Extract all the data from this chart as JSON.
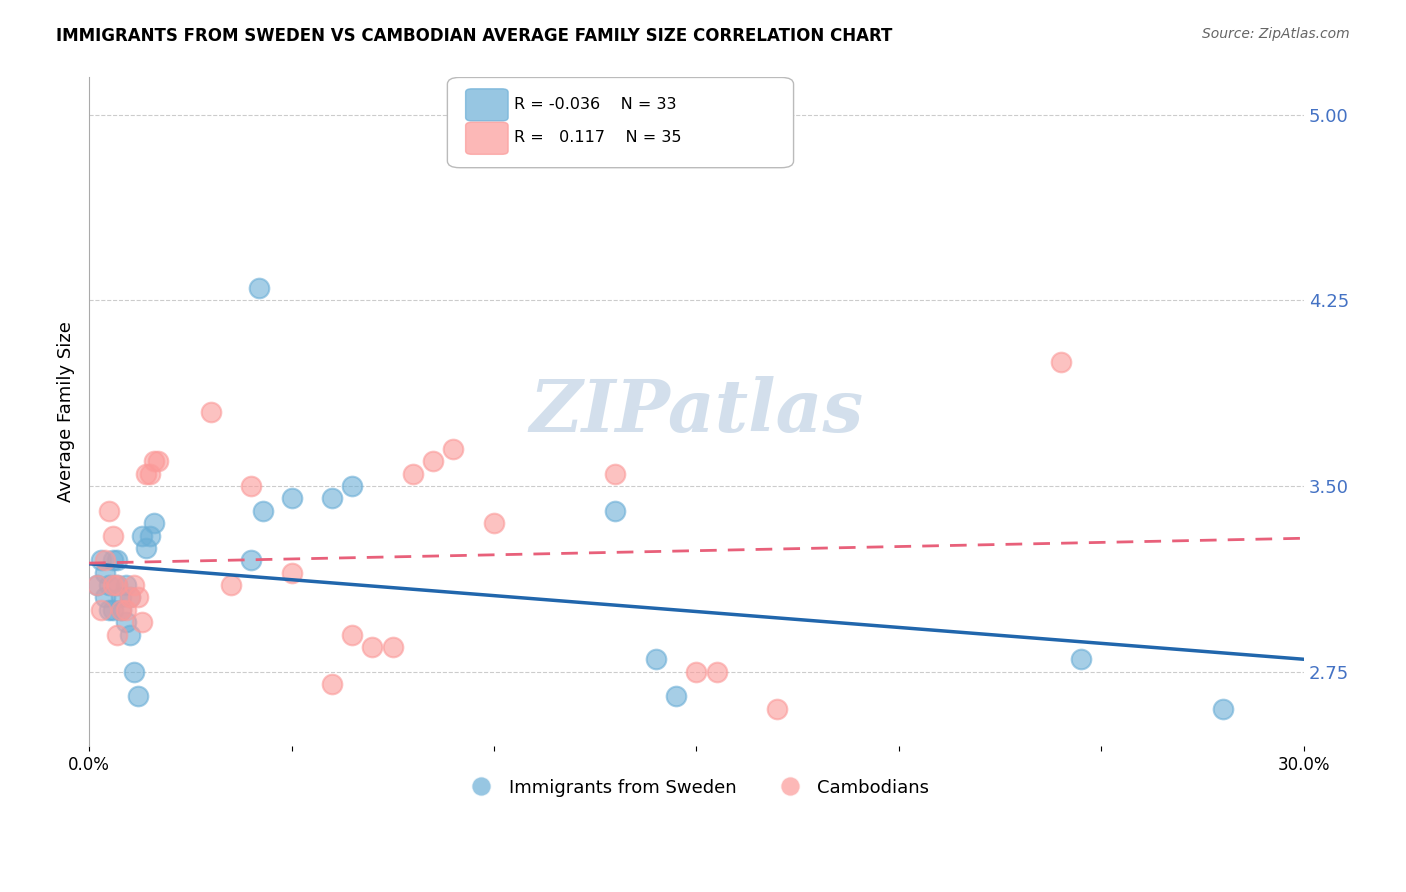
{
  "title": "IMMIGRANTS FROM SWEDEN VS CAMBODIAN AVERAGE FAMILY SIZE CORRELATION CHART",
  "source": "Source: ZipAtlas.com",
  "ylabel": "Average Family Size",
  "xlabel": "",
  "xlim": [
    0.0,
    0.3
  ],
  "ylim": [
    2.45,
    5.15
  ],
  "yticks": [
    2.75,
    3.5,
    4.25,
    5.0
  ],
  "xticks": [
    0.0,
    0.05,
    0.1,
    0.15,
    0.2,
    0.25,
    0.3
  ],
  "xtick_labels": [
    "0.0%",
    "",
    "",
    "",
    "",
    "",
    "30.0%"
  ],
  "sweden_R": -0.036,
  "sweden_N": 33,
  "cambodian_R": 0.117,
  "cambodian_N": 35,
  "sweden_color": "#6baed6",
  "cambodian_color": "#fb9a99",
  "regression_blue_color": "#2166ac",
  "regression_pink_color": "#e8607a",
  "watermark": "ZIPatlas",
  "watermark_color": "#c8d8e8",
  "sweden_points_x": [
    0.002,
    0.003,
    0.004,
    0.004,
    0.005,
    0.005,
    0.006,
    0.006,
    0.007,
    0.007,
    0.008,
    0.008,
    0.009,
    0.009,
    0.01,
    0.01,
    0.011,
    0.012,
    0.013,
    0.014,
    0.015,
    0.016,
    0.04,
    0.042,
    0.043,
    0.05,
    0.06,
    0.065,
    0.13,
    0.14,
    0.145,
    0.245,
    0.28
  ],
  "sweden_points_y": [
    3.1,
    3.2,
    3.05,
    3.15,
    3.0,
    3.1,
    3.2,
    3.0,
    3.1,
    3.2,
    3.05,
    3.0,
    2.95,
    3.1,
    3.05,
    2.9,
    2.75,
    2.65,
    3.3,
    3.25,
    3.3,
    3.35,
    3.2,
    4.3,
    3.4,
    3.45,
    3.45,
    3.5,
    3.4,
    2.8,
    2.65,
    2.8,
    2.6
  ],
  "cambodian_points_x": [
    0.002,
    0.003,
    0.004,
    0.005,
    0.006,
    0.006,
    0.007,
    0.007,
    0.008,
    0.009,
    0.01,
    0.011,
    0.012,
    0.013,
    0.014,
    0.015,
    0.016,
    0.017,
    0.03,
    0.035,
    0.04,
    0.05,
    0.06,
    0.065,
    0.07,
    0.075,
    0.08,
    0.085,
    0.09,
    0.1,
    0.13,
    0.15,
    0.155,
    0.17,
    0.24
  ],
  "cambodian_points_y": [
    3.1,
    3.0,
    3.2,
    3.4,
    3.1,
    3.3,
    3.1,
    2.9,
    3.0,
    3.0,
    3.05,
    3.1,
    3.05,
    2.95,
    3.55,
    3.55,
    3.6,
    3.6,
    3.8,
    3.1,
    3.5,
    3.15,
    2.7,
    2.9,
    2.85,
    2.85,
    3.55,
    3.6,
    3.65,
    3.35,
    3.55,
    2.75,
    2.75,
    2.6,
    4.0
  ]
}
